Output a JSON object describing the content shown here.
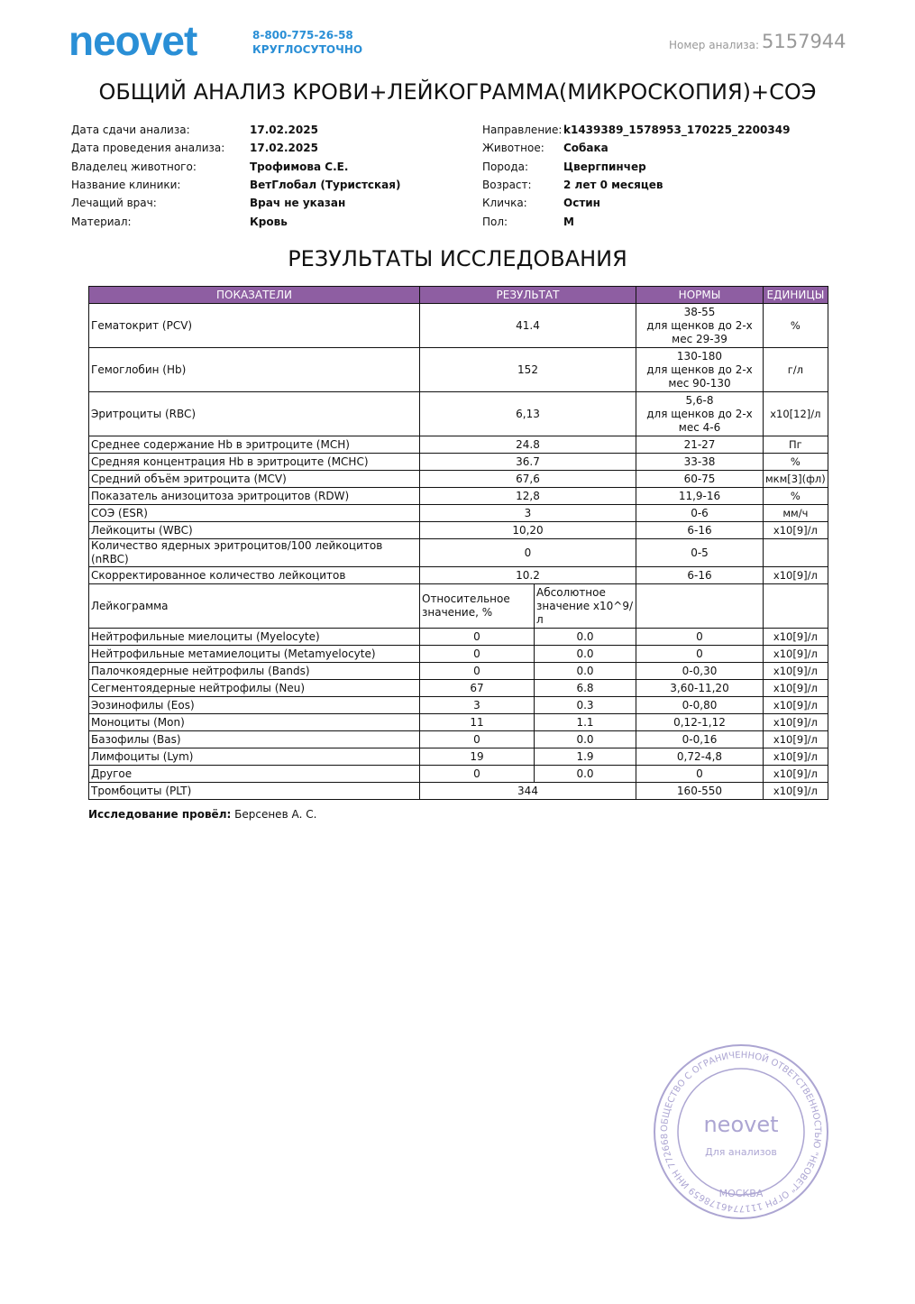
{
  "header": {
    "logo": "neovet",
    "phone": "8-800-775-26-58",
    "hours": "КРУГЛОСУТОЧНО",
    "analysis_label": "Номер анализа:",
    "analysis_number": "5157944"
  },
  "title": "ОБЩИЙ АНАЛИЗ КРОВИ+ЛЕЙКОГРАММА(МИКРОСКОПИЯ)+СОЭ",
  "info": {
    "left": [
      [
        "Дата сдачи анализа:",
        "17.02.2025"
      ],
      [
        "Дата проведения анализа:",
        "17.02.2025"
      ],
      [
        "Владелец животного:",
        "Трофимова С.Е."
      ],
      [
        "Название клиники:",
        "ВетГлобал (Туристская)"
      ],
      [
        "Лечащий врач:",
        "Врач не указан"
      ],
      [
        "Материал:",
        "Кровь"
      ]
    ],
    "right": [
      [
        "Направление:",
        "k1439389_1578953_170225_2200349"
      ],
      [
        "Животное:",
        "Собака"
      ],
      [
        "Порода:",
        "Цвергпинчер"
      ],
      [
        "Возраст:",
        "2 лет 0 месяцев"
      ],
      [
        "Кличка:",
        "Остин"
      ],
      [
        "Пол:",
        "М"
      ]
    ]
  },
  "section_title": "РЕЗУЛЬТАТЫ ИССЛЕДОВАНИЯ",
  "table": {
    "headers": [
      "ПОКАЗАТЕЛИ",
      "РЕЗУЛЬТАТ",
      "НОРМЫ",
      "ЕДИНИЦЫ"
    ],
    "rows": [
      {
        "name": "Гематокрит (PCV)",
        "result": "41.4",
        "norm": [
          "38-55",
          "для щенков до 2-х",
          "мес 29-39"
        ],
        "unit": "%"
      },
      {
        "name": "Гемоглобин (Hb)",
        "result": "152",
        "norm": [
          "130-180",
          "для щенков до 2-х",
          "мес 90-130"
        ],
        "unit": "г/л"
      },
      {
        "name": "Эритроциты (RBC)",
        "result": "6,13",
        "norm": [
          "5,6-8",
          "для щенков до 2-х",
          "мес 4-6"
        ],
        "unit": "x10[12]/л"
      },
      {
        "name": "Среднее содержание Hb в эритроците (MCH)",
        "result": "24.8",
        "norm": [
          "21-27"
        ],
        "unit": "Пг"
      },
      {
        "name": "Средняя концентрация Hb в эритроците (MCHC)",
        "result": "36.7",
        "norm": [
          "33-38"
        ],
        "unit": "%"
      },
      {
        "name": "Средний объём эритроцита (MCV)",
        "result": "67,6",
        "norm": [
          "60-75"
        ],
        "unit": "мкм[3](фл)"
      },
      {
        "name": "Показатель анизоцитоза эритроцитов (RDW)",
        "result": "12,8",
        "norm": [
          "11,9-16"
        ],
        "unit": "%"
      },
      {
        "name": "СОЭ (ESR)",
        "result": "3",
        "norm": [
          "0-6"
        ],
        "unit": "мм/ч"
      },
      {
        "name": "Лейкоциты (WBC)",
        "result": "10,20",
        "norm": [
          "6-16"
        ],
        "unit": "x10[9]/л"
      },
      {
        "name": "Количество ядерных эритроцитов/100 лейкоцитов (nRBC)",
        "result": "0",
        "norm": [
          "0-5"
        ]
      },
      {
        "name": "Скорректированное количество лейкоцитов",
        "result": "10.2",
        "norm": [
          "6-16"
        ],
        "unit": "x10[9]/л"
      },
      {
        "name": "Лейкограмма",
        "relative": "Относительное значение, %",
        "absolute": "Абсолютное значение x10^9/л"
      },
      {
        "name": "Нейтрофильные миелоциты (Myelocyte)",
        "relative": "0",
        "absolute": "0.0",
        "norm": [
          "0"
        ],
        "unit": "x10[9]/л"
      },
      {
        "name": "Нейтрофильные метамиелоциты (Metamyelocyte)",
        "relative": "0",
        "absolute": "0.0",
        "norm": [
          "0"
        ],
        "unit": "x10[9]/л"
      },
      {
        "name": "Палочкоядерные нейтрофилы (Bands)",
        "relative": "0",
        "absolute": "0.0",
        "norm": [
          "0-0,30"
        ],
        "unit": "x10[9]/л"
      },
      {
        "name": "Сегментоядерные нейтрофилы (Neu)",
        "relative": "67",
        "absolute": "6.8",
        "norm": [
          "3,60-11,20"
        ],
        "unit": "x10[9]/л"
      },
      {
        "name": "Эозинофилы (Eos)",
        "relative": "3",
        "absolute": "0.3",
        "norm": [
          "0-0,80"
        ],
        "unit": "x10[9]/л"
      },
      {
        "name": "Моноциты (Mon)",
        "relative": "11",
        "absolute": "1.1",
        "norm": [
          "0,12-1,12"
        ],
        "unit": "x10[9]/л"
      },
      {
        "name": "Базофилы (Bas)",
        "relative": "0",
        "absolute": "0.0",
        "norm": [
          "0-0,16"
        ],
        "unit": "x10[9]/л"
      },
      {
        "name": "Лимфоциты (Lym)",
        "relative": "19",
        "absolute": "1.9",
        "norm": [
          "0,72-4,8"
        ],
        "unit": "x10[9]/л"
      },
      {
        "name": "Другое",
        "relative": "0",
        "absolute": "0.0",
        "norm": [
          "0"
        ],
        "unit": "x10[9]/л"
      },
      {
        "name": "Тромбоциты (PLT)",
        "result": "344",
        "norm": [
          "160-550"
        ],
        "unit": "x10[9]/л"
      }
    ]
  },
  "footer": {
    "label": "Исследование провёл:",
    "name": "Берсенев А. С."
  },
  "stamp": {
    "ring": "ОБЩЕСТВО С ОГРАНИЧЕННОЙ ОТВЕТСТВЕННОСТЬЮ \"НЕОВЕТ\" ОГРН 1117746178659 ИНН 7726682072",
    "logo": "neovet",
    "text": "Для анализов",
    "city": "МОСКВА"
  }
}
